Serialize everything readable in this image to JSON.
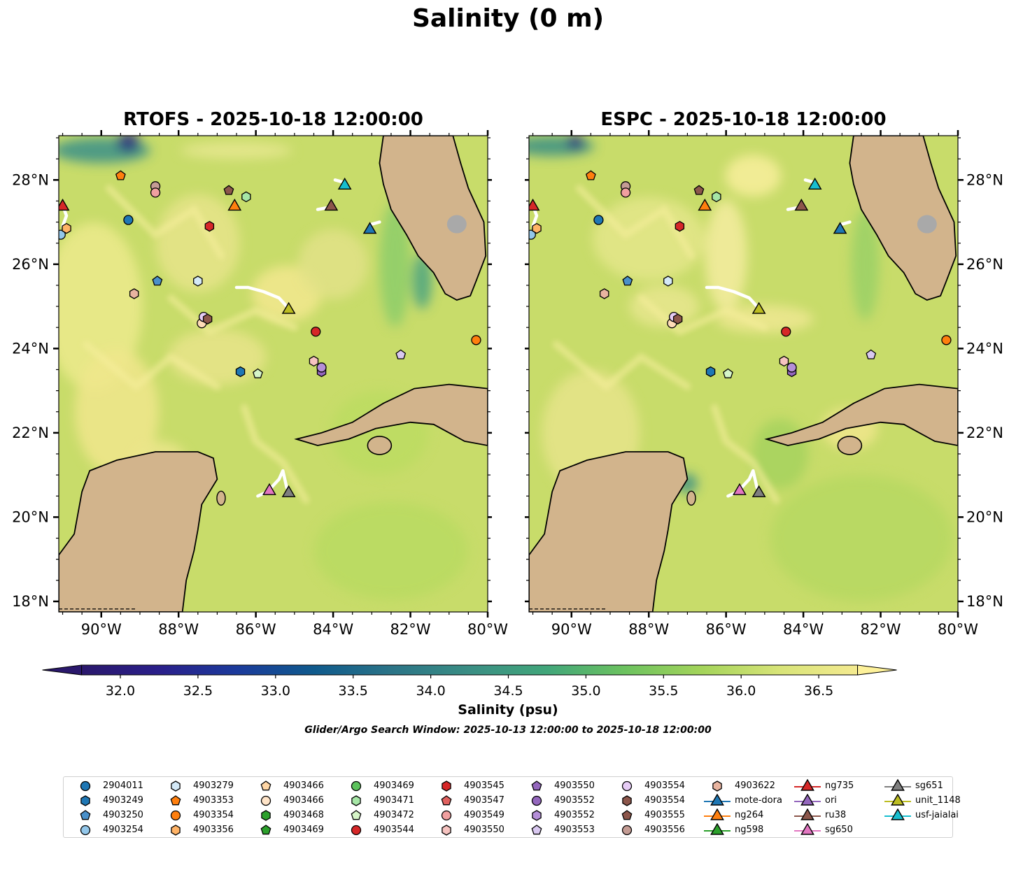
{
  "figure": {
    "suptitle": "Salinity (0 m)",
    "colorbar_title": "Salinity (psu)",
    "search_window": "Glider/Argo Search Window: 2025-10-13 12:00:00 to 2025-10-18 12:00:00"
  },
  "chart_data": {
    "type": "heatmap",
    "variable": "Salinity",
    "depth": "0 m",
    "units": "psu",
    "panels": [
      {
        "model": "RTOFS",
        "title": "RTOFS - 2025-10-18 12:00:00"
      },
      {
        "model": "ESPC",
        "title": "ESPC - 2025-10-18 12:00:00"
      }
    ],
    "lon_range": [
      -91.1,
      -80.0
    ],
    "lat_range": [
      17.75,
      29.05
    ],
    "x_ticks": [
      {
        "value": -90,
        "label": "90°W"
      },
      {
        "value": -88,
        "label": "88°W"
      },
      {
        "value": -86,
        "label": "86°W"
      },
      {
        "value": -84,
        "label": "84°W"
      },
      {
        "value": -82,
        "label": "82°W"
      },
      {
        "value": -80,
        "label": "80°W"
      }
    ],
    "y_ticks": [
      {
        "value": 28,
        "label": "28°N"
      },
      {
        "value": 26,
        "label": "26°N"
      },
      {
        "value": 24,
        "label": "24°N"
      },
      {
        "value": 22,
        "label": "22°N"
      },
      {
        "value": 20,
        "label": "20°N"
      },
      {
        "value": 18,
        "label": "18°N"
      }
    ],
    "colorbar": {
      "min": 31.75,
      "max": 36.75,
      "extend": "both",
      "ticks": [
        {
          "value": 32.0,
          "label": "32.0"
        },
        {
          "value": 32.5,
          "label": "32.5"
        },
        {
          "value": 33.0,
          "label": "33.0"
        },
        {
          "value": 33.5,
          "label": "33.5"
        },
        {
          "value": 34.0,
          "label": "34.0"
        },
        {
          "value": 34.5,
          "label": "34.5"
        },
        {
          "value": 35.0,
          "label": "35.0"
        },
        {
          "value": 35.5,
          "label": "35.5"
        },
        {
          "value": 36.0,
          "label": "36.0"
        },
        {
          "value": 36.5,
          "label": "36.5"
        }
      ],
      "colormap": "haline",
      "colors": [
        "#2a186c",
        "#1b3a9b",
        "#0f5a8c",
        "#2b7487",
        "#3a8e84",
        "#41a67a",
        "#6cc25f",
        "#b9dc60",
        "#f0e68c",
        "#fdf19a"
      ]
    },
    "markers": [
      {
        "id": "2904011",
        "shape": "circle",
        "color": "#1f77b4",
        "lon": -89.3,
        "lat": 27.05
      },
      {
        "id": "4903249",
        "shape": "hexagon",
        "color": "#1f77b4",
        "lon": -86.4,
        "lat": 23.45
      },
      {
        "id": "4903250",
        "shape": "pentagon",
        "color": "#4a90c9",
        "lon": -88.55,
        "lat": 25.6
      },
      {
        "id": "4903254",
        "shape": "circle",
        "color": "#93c7ea",
        "lon": -91.05,
        "lat": 26.7
      },
      {
        "id": "4903279",
        "shape": "hexagon",
        "color": "#d4e9f7",
        "lon": -87.5,
        "lat": 25.6
      },
      {
        "id": "4903353",
        "shape": "pentagon",
        "color": "#ff7f0e",
        "lon": -89.5,
        "lat": 28.1
      },
      {
        "id": "4903354",
        "shape": "circle",
        "color": "#ff7f0e",
        "lon": -80.3,
        "lat": 24.2
      },
      {
        "id": "4903356",
        "shape": "hexagon",
        "color": "#ffb366",
        "lon": -90.9,
        "lat": 26.85
      },
      {
        "id": "4903466",
        "shape": "circle",
        "color": "#ffdcb8",
        "lon": -87.4,
        "lat": 24.6
      },
      {
        "id": "4903472",
        "shape": "pentagon",
        "color": "#d6f5c8",
        "lon": -85.95,
        "lat": 23.4
      },
      {
        "id": "4903471",
        "shape": "hexagon",
        "color": "#a6e6a6",
        "lon": -86.25,
        "lat": 27.6
      },
      {
        "id": "4903544",
        "shape": "circle",
        "color": "#d62728",
        "lon": -84.45,
        "lat": 24.4
      },
      {
        "id": "4903545",
        "shape": "hexagon",
        "color": "#d62728",
        "lon": -87.2,
        "lat": 26.9
      },
      {
        "id": "4903550",
        "shape": "hexagon",
        "color": "#f6c3c0",
        "lon": -84.5,
        "lat": 23.7
      },
      {
        "id": "4903552",
        "shape": "hexagon",
        "color": "#9467bd",
        "lon": -84.3,
        "lat": 23.45
      },
      {
        "id": "4903553",
        "shape": "pentagon",
        "color": "#d9c8f0",
        "lon": -82.25,
        "lat": 23.85
      },
      {
        "id": "4903554",
        "shape": "circle",
        "color": "#e6ccf5",
        "lon": -87.35,
        "lat": 24.75
      },
      {
        "id": "4903555",
        "shape": "pentagon",
        "color": "#8c564b",
        "lon": -86.7,
        "lat": 27.75
      },
      {
        "id": "4903556",
        "shape": "circle",
        "color": "#c49c94",
        "lon": -88.6,
        "lat": 27.85
      },
      {
        "id": "4903549",
        "shape": "circle",
        "color": "#f0a0a0",
        "lon": -88.6,
        "lat": 27.7
      },
      {
        "id": "4903622",
        "shape": "hexagon",
        "color": "#e8b4a0",
        "lon": -89.15,
        "lat": 25.3
      },
      {
        "id": "4903554b",
        "shape": "hexagon",
        "color": "#8c564b",
        "lon": -87.25,
        "lat": 24.7
      },
      {
        "id": "4903552b",
        "shape": "circle",
        "color": "#b58fd8",
        "lon": -84.3,
        "lat": 23.55
      },
      {
        "id": "mote-dora",
        "shape": "triangle",
        "color": "#1f77b4",
        "lon": -83.05,
        "lat": 26.85
      },
      {
        "id": "ng264",
        "shape": "triangle",
        "color": "#ff7f0e",
        "lon": -86.55,
        "lat": 27.4
      },
      {
        "id": "ng735",
        "shape": "triangle",
        "color": "#d62728",
        "lon": -91.0,
        "lat": 27.4
      },
      {
        "id": "ru38",
        "shape": "triangle",
        "color": "#8c564b",
        "lon": -84.05,
        "lat": 27.4
      },
      {
        "id": "sg650",
        "shape": "triangle",
        "color": "#e377c2",
        "lon": -85.65,
        "lat": 20.65
      },
      {
        "id": "sg651",
        "shape": "triangle",
        "color": "#7f7f7f",
        "lon": -85.15,
        "lat": 20.6
      },
      {
        "id": "unit_1148",
        "shape": "triangle",
        "color": "#bcbd22",
        "lon": -85.15,
        "lat": 24.95
      },
      {
        "id": "usf-jaialai",
        "shape": "triangle",
        "color": "#17becf",
        "lon": -83.7,
        "lat": 27.9
      }
    ],
    "tracks": [
      {
        "lon": [
          -86.5,
          -86.2,
          -85.8,
          -85.4,
          -85.15
        ],
        "lat": [
          25.45,
          25.45,
          25.35,
          25.2,
          24.95
        ]
      },
      {
        "lon": [
          -85.95,
          -85.7,
          -85.4,
          -85.3,
          -85.2
        ],
        "lat": [
          20.5,
          20.6,
          20.9,
          21.1,
          20.7
        ]
      },
      {
        "lon": [
          -84.4,
          -84.1
        ],
        "lat": [
          27.3,
          27.35
        ]
      },
      {
        "lon": [
          -83.95,
          -83.75
        ],
        "lat": [
          28.0,
          27.95
        ]
      },
      {
        "lon": [
          -91.0,
          -90.9,
          -91.0
        ],
        "lat": [
          27.4,
          27.15,
          26.9
        ]
      },
      {
        "lon": [
          -83.0,
          -82.8
        ],
        "lat": [
          26.95,
          27.0
        ]
      }
    ]
  },
  "legend": {
    "entries": [
      {
        "label": "2904011",
        "shape": "circle",
        "color": "#1f77b4"
      },
      {
        "label": "4903249",
        "shape": "hexagon",
        "color": "#1f77b4"
      },
      {
        "label": "4903250",
        "shape": "pentagon",
        "color": "#4a90c9"
      },
      {
        "label": "4903254",
        "shape": "circle",
        "color": "#93c7ea"
      },
      {
        "label": "4903279",
        "shape": "hexagon",
        "color": "#d4e9f7"
      },
      {
        "label": "4903353",
        "shape": "pentagon",
        "color": "#ff7f0e"
      },
      {
        "label": "4903354",
        "shape": "circle",
        "color": "#ff7f0e"
      },
      {
        "label": "4903356",
        "shape": "hexagon",
        "color": "#ffb366"
      },
      {
        "label": "4903466",
        "shape": "pentagon",
        "color": "#ffd6a5"
      },
      {
        "label": "4903466",
        "shape": "circle",
        "color": "#ffe4c8"
      },
      {
        "label": "4903468",
        "shape": "hexagon",
        "color": "#2ca02c"
      },
      {
        "label": "4903469",
        "shape": "pentagon",
        "color": "#2ca02c"
      },
      {
        "label": "4903469",
        "shape": "circle",
        "color": "#5cc25c"
      },
      {
        "label": "4903471",
        "shape": "hexagon",
        "color": "#a6e6a6"
      },
      {
        "label": "4903472",
        "shape": "pentagon",
        "color": "#d6f5c8"
      },
      {
        "label": "4903544",
        "shape": "circle",
        "color": "#d62728"
      },
      {
        "label": "4903545",
        "shape": "hexagon",
        "color": "#d62728"
      },
      {
        "label": "4903547",
        "shape": "pentagon",
        "color": "#e0615f"
      },
      {
        "label": "4903549",
        "shape": "circle",
        "color": "#f0a0a0"
      },
      {
        "label": "4903550",
        "shape": "hexagon",
        "color": "#f6c3c0"
      },
      {
        "label": "4903550",
        "shape": "pentagon",
        "color": "#9467bd"
      },
      {
        "label": "4903552",
        "shape": "circle",
        "color": "#9467bd"
      },
      {
        "label": "4903552",
        "shape": "hexagon",
        "color": "#b58fd8"
      },
      {
        "label": "4903553",
        "shape": "pentagon",
        "color": "#d9c8f0"
      },
      {
        "label": "4903554",
        "shape": "circle",
        "color": "#e6ccf5"
      },
      {
        "label": "4903554",
        "shape": "hexagon",
        "color": "#8c564b"
      },
      {
        "label": "4903555",
        "shape": "pentagon",
        "color": "#8c564b"
      },
      {
        "label": "4903556",
        "shape": "circle",
        "color": "#c49c94"
      },
      {
        "label": "4903622",
        "shape": "hexagon",
        "color": "#e8b4a0"
      },
      {
        "label": "mote-dora",
        "shape": "triangle-line",
        "color": "#1f77b4"
      },
      {
        "label": "ng264",
        "shape": "triangle-line",
        "color": "#ff7f0e"
      },
      {
        "label": "ng598",
        "shape": "triangle-line",
        "color": "#2ca02c"
      },
      {
        "label": "ng735",
        "shape": "triangle-line",
        "color": "#d62728"
      },
      {
        "label": "ori",
        "shape": "triangle-line",
        "color": "#9467bd"
      },
      {
        "label": "ru38",
        "shape": "triangle-line",
        "color": "#8c564b"
      },
      {
        "label": "sg650",
        "shape": "triangle-line",
        "color": "#e377c2"
      },
      {
        "label": "sg651",
        "shape": "triangle-line",
        "color": "#7f7f7f"
      },
      {
        "label": "unit_1148",
        "shape": "triangle-line",
        "color": "#bcbd22"
      },
      {
        "label": "usf-jaialai",
        "shape": "triangle-line",
        "color": "#17becf"
      }
    ]
  },
  "colors": {
    "land": "#d2b48c",
    "lake": "#a4b8d8",
    "ocean_base": "#c8dc6a",
    "warm_patch": "#f2e88a",
    "fresh_patch": "#2b3f9e",
    "track": "#ffffff"
  }
}
